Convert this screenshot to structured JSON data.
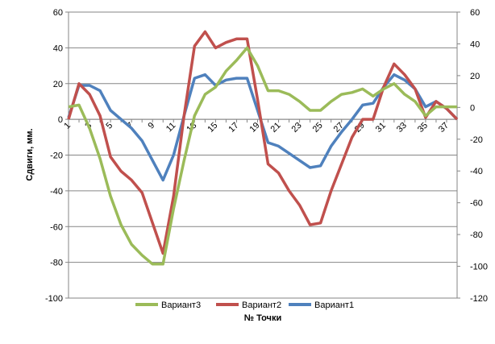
{
  "chart_data": {
    "type": "line",
    "title": "",
    "xlabel": "№ Точки",
    "ylabel": "Сдвиги, мм.",
    "ylim": [
      -100,
      60
    ],
    "y_ticks": [
      60,
      40,
      20,
      0,
      -20,
      -40,
      -60,
      -80,
      -100
    ],
    "y2lim": [
      -120,
      60
    ],
    "y2_ticks": [
      60,
      40,
      20,
      0,
      -20,
      -40,
      -60,
      -80,
      -100,
      -120
    ],
    "x": [
      1,
      2,
      3,
      4,
      5,
      6,
      7,
      8,
      9,
      10,
      11,
      12,
      13,
      14,
      15,
      16,
      17,
      18,
      19,
      20,
      21,
      22,
      23,
      24,
      25,
      26,
      27,
      28,
      29,
      30,
      31,
      32,
      33,
      34,
      35,
      36,
      37,
      38
    ],
    "x_tick_labels": [
      "1",
      "3",
      "5",
      "7",
      "9",
      "11",
      "13",
      "15",
      "17",
      "19",
      "21",
      "23",
      "25",
      "27",
      "29",
      "31",
      "33",
      "35",
      "37"
    ],
    "grid": true,
    "legend_position": "bottom",
    "series": [
      {
        "name": "Вариант3",
        "color": "#9BBB59",
        "values": [
          7,
          8,
          -5,
          -22,
          -43,
          -59,
          -70,
          -76,
          -81,
          -81,
          -50,
          -23,
          2,
          14,
          18,
          27,
          33,
          40,
          30,
          16,
          16,
          14,
          10,
          5,
          5,
          10,
          14,
          15,
          17,
          13,
          17,
          20,
          14,
          10,
          2,
          7,
          7,
          7
        ]
      },
      {
        "name": "Вариант2",
        "color": "#C0504D",
        "values": [
          0,
          20,
          14,
          2,
          -21,
          -29,
          -34,
          -41,
          -58,
          -75,
          -43,
          2,
          41,
          49,
          40,
          43,
          45,
          45,
          11,
          -25,
          -30,
          -40,
          -48,
          -59,
          -58,
          -40,
          -25,
          -10,
          0,
          0,
          18,
          31,
          25,
          17,
          1,
          10,
          6,
          0
        ]
      },
      {
        "name": "Вариант1",
        "color": "#4F81BD",
        "values": [
          1,
          19,
          19,
          16,
          5,
          0,
          -5,
          -12,
          -23,
          -34,
          -20,
          2,
          23,
          25,
          19,
          22,
          23,
          23,
          5,
          -13,
          -15,
          -19,
          -23,
          -27,
          -26,
          -15,
          -7,
          0,
          8,
          9,
          18,
          25,
          22,
          17,
          7,
          10,
          6,
          0
        ]
      }
    ]
  }
}
